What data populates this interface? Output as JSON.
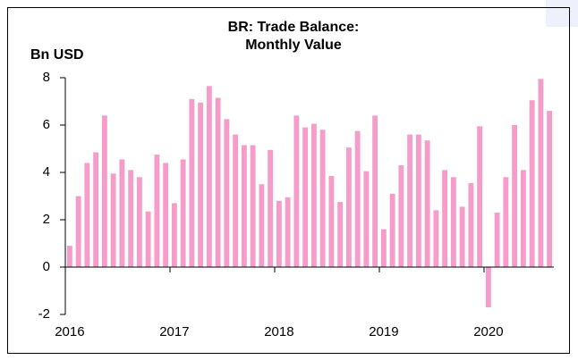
{
  "chart_data": {
    "type": "bar",
    "title": [
      "BR: Trade Balance:",
      "Monthly Value"
    ],
    "y_label": "Bn USD",
    "categories": [
      "2016",
      null,
      null,
      null,
      null,
      null,
      null,
      null,
      null,
      null,
      null,
      null,
      "2017",
      null,
      null,
      null,
      null,
      null,
      null,
      null,
      null,
      null,
      null,
      null,
      "2018",
      null,
      null,
      null,
      null,
      null,
      null,
      null,
      null,
      null,
      null,
      null,
      "2019",
      null,
      null,
      null,
      null,
      null,
      null,
      null,
      null,
      null,
      null,
      null,
      "2020",
      null,
      null,
      null,
      null,
      null,
      null,
      null
    ],
    "values": [
      0.9,
      3.0,
      4.4,
      4.85,
      6.4,
      3.95,
      4.55,
      4.1,
      3.8,
      2.35,
      4.75,
      4.4,
      2.7,
      4.55,
      7.1,
      6.95,
      7.65,
      7.15,
      6.25,
      5.6,
      5.15,
      5.15,
      3.5,
      4.95,
      2.8,
      2.95,
      6.4,
      5.9,
      6.05,
      5.8,
      3.85,
      2.75,
      5.05,
      5.75,
      4.05,
      6.4,
      1.6,
      3.1,
      4.3,
      5.6,
      5.6,
      5.35,
      2.4,
      4.1,
      3.8,
      2.55,
      3.55,
      5.95,
      -1.7,
      2.3,
      3.8,
      6.0,
      4.1,
      7.05,
      7.95,
      6.6
    ],
    "color": "#f59ccb",
    "ylim": [
      -2,
      8
    ],
    "yticks": [
      -2,
      0,
      2,
      4,
      6,
      8
    ],
    "grid": false
  }
}
